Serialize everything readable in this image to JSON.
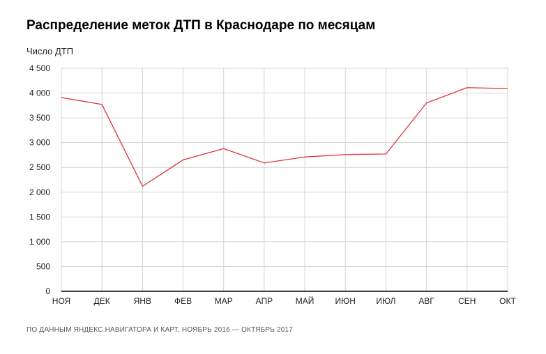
{
  "chart_data": {
    "type": "line",
    "title": "Распределение меток ДТП в Краснодаре по месяцам",
    "ylabel": "Число ДТП",
    "xlabel": "",
    "categories": [
      "НОЯ",
      "ДЕК",
      "ЯНВ",
      "ФЕВ",
      "МАР",
      "АПР",
      "МАЙ",
      "ИЮН",
      "ИЮЛ",
      "АВГ",
      "СЕН",
      "ОКТ"
    ],
    "series": [
      {
        "values": [
          3910,
          3770,
          2120,
          2650,
          2880,
          2590,
          2710,
          2760,
          2770,
          3800,
          4110,
          4090
        ]
      }
    ],
    "ylim": [
      0,
      4500
    ],
    "yticks": [
      0,
      500,
      1000,
      1500,
      2000,
      2500,
      3000,
      3500,
      4000,
      4500
    ],
    "ytick_labels": [
      "0",
      "500",
      "1 000",
      "1 500",
      "2 000",
      "2 500",
      "3 000",
      "3 500",
      "4 000",
      "4 500"
    ],
    "grid": true,
    "line_color": "#e0303a",
    "source": "ПО ДАННЫМ ЯНДЕКС.НАВИГАТОРА И КАРТ, НОЯБРЬ 2016 — ОКТЯБРЬ 2017"
  }
}
